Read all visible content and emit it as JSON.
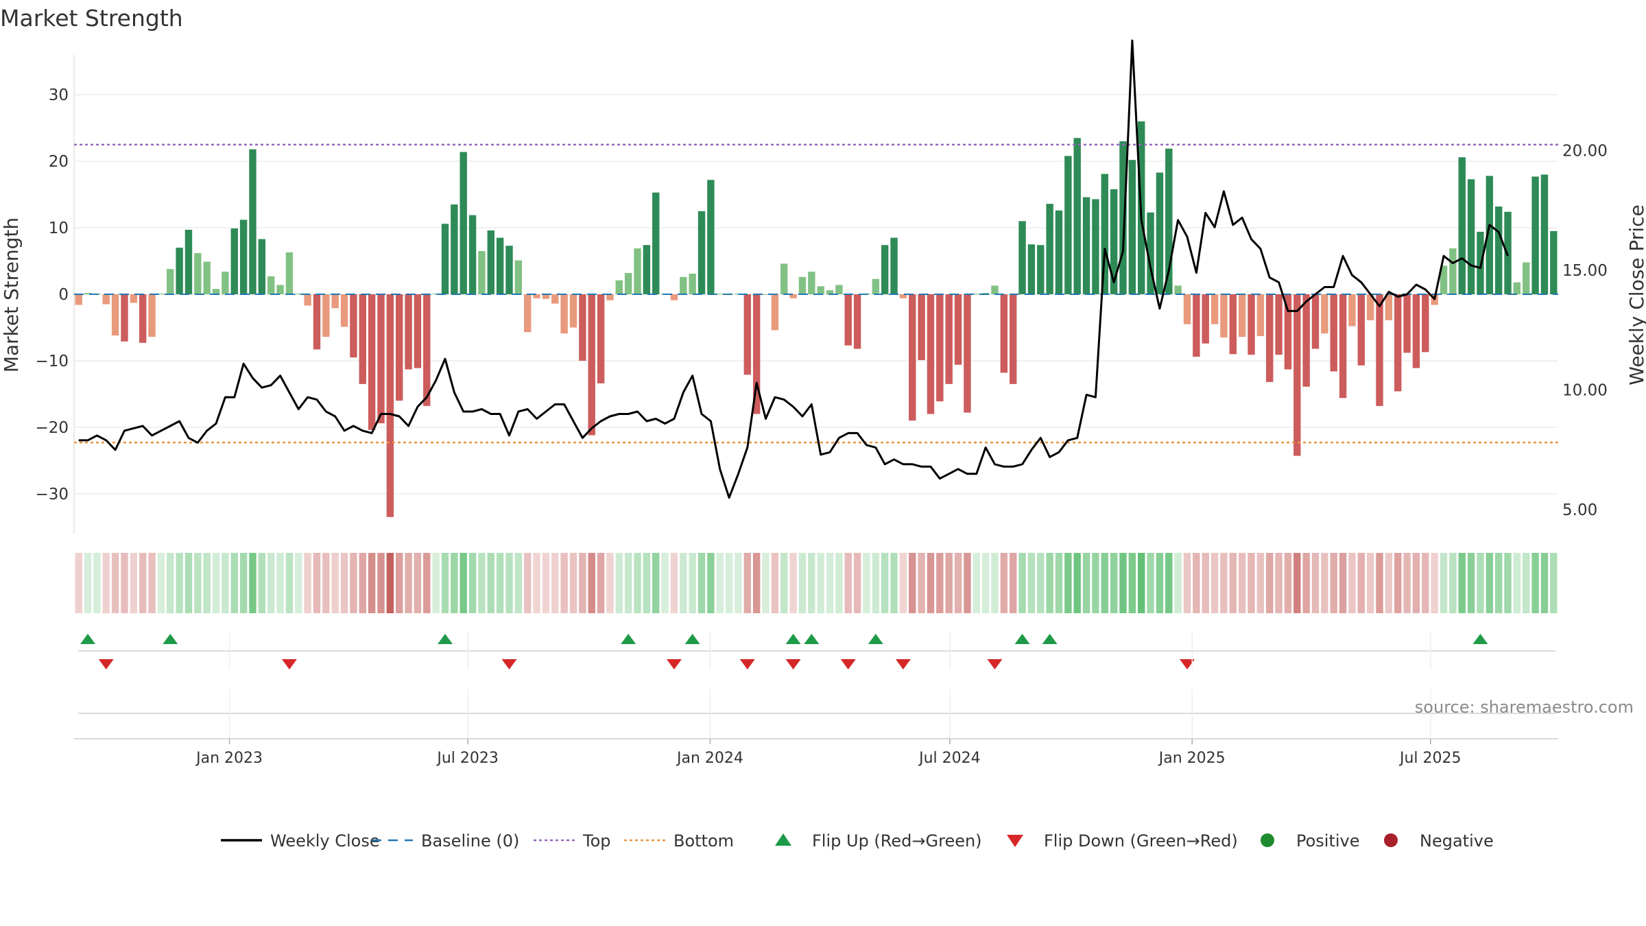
{
  "chart_data": {
    "type": "bar",
    "title": "Market Strength",
    "ylabel": "Market Strength",
    "y2label": "Weekly Close Price",
    "ylim": [
      -36,
      36
    ],
    "y2lim": [
      4,
      24
    ],
    "yticks": [
      30,
      20,
      10,
      0,
      -10,
      -20,
      -30
    ],
    "y2ticks": [
      "20.00",
      "15.00",
      "10.00",
      "5.00"
    ],
    "y2tick_values": [
      20,
      15,
      10,
      5
    ],
    "top_level": 22.5,
    "bottom_level": -22.3,
    "x_start": "2022-09-05",
    "x_end": "2025-10-06",
    "x_ticks": [
      {
        "label": "Jan 2023",
        "date": "2023-01-01"
      },
      {
        "label": "Jul 2023",
        "date": "2023-07-01"
      },
      {
        "label": "Jan 2024",
        "date": "2024-01-01"
      },
      {
        "label": "Jul 2024",
        "date": "2024-07-01"
      },
      {
        "label": "Jan 2025",
        "date": "2025-01-01"
      },
      {
        "label": "Jul 2025",
        "date": "2025-07-01"
      }
    ],
    "strength": [
      -1.6,
      0.2,
      0.1,
      -1.5,
      -6.2,
      -7.1,
      -1.3,
      -7.3,
      -6.4,
      0.1,
      3.8,
      7.0,
      9.7,
      6.2,
      4.9,
      0.8,
      3.4,
      9.9,
      11.2,
      21.8,
      8.3,
      2.7,
      1.4,
      6.3,
      0.1,
      -1.7,
      -8.3,
      -6.4,
      -2.1,
      -4.9,
      -9.5,
      -13.5,
      -20.4,
      -19.4,
      -33.5,
      -16.0,
      -11.3,
      -11.1,
      -16.8,
      0.1,
      10.6,
      13.5,
      21.4,
      11.9,
      6.5,
      9.6,
      8.5,
      7.3,
      5.1,
      -5.7,
      -0.6,
      -0.7,
      -1.4,
      -5.9,
      -5.0,
      -10.0,
      -21.2,
      -13.4,
      -0.9,
      2.1,
      3.2,
      6.9,
      7.4,
      15.3,
      0.1,
      -0.9,
      2.6,
      3.1,
      12.5,
      17.2,
      0.1,
      0.1,
      0.1,
      -12.1,
      -18.0,
      0.0,
      -5.4,
      4.6,
      -0.6,
      2.6,
      3.4,
      1.2,
      0.6,
      1.4,
      -7.7,
      -8.2,
      0.1,
      2.3,
      7.4,
      8.5,
      -0.6,
      -19.0,
      -9.9,
      -18.0,
      -16.1,
      -13.5,
      -10.6,
      -17.8,
      0.1,
      0.2,
      1.3,
      -11.8,
      -13.5,
      11.0,
      7.5,
      7.4,
      13.6,
      12.6,
      20.8,
      23.5,
      14.6,
      14.3,
      18.1,
      15.8,
      23.0,
      20.2,
      26.0,
      12.3,
      18.3,
      21.9,
      1.3,
      -4.5,
      -9.4,
      -7.4,
      -4.5,
      -6.5,
      -9.0,
      -6.4,
      -9.1,
      -6.3,
      -13.2,
      -9.1,
      -11.3,
      -24.3,
      -13.9,
      -8.2,
      -5.9,
      -11.6,
      -15.6,
      -4.8,
      -10.7,
      -3.9,
      -16.8,
      -3.9,
      -14.6,
      -8.8,
      -11.1,
      -8.7,
      -1.6,
      4.3,
      6.9,
      20.6,
      17.3,
      9.4,
      17.8,
      13.2,
      12.4,
      1.8,
      4.8,
      17.7,
      18.0,
      9.5
    ],
    "close": [
      7.9,
      7.9,
      8.1,
      7.9,
      7.5,
      8.3,
      8.4,
      8.5,
      8.1,
      8.3,
      8.5,
      8.7,
      8.0,
      7.8,
      8.3,
      8.6,
      9.7,
      9.7,
      11.1,
      10.5,
      10.1,
      10.2,
      10.6,
      9.9,
      9.2,
      9.7,
      9.6,
      9.1,
      8.9,
      8.3,
      8.5,
      8.3,
      8.2,
      9.0,
      9.0,
      8.9,
      8.5,
      9.3,
      9.7,
      10.4,
      11.3,
      9.9,
      9.1,
      9.1,
      9.2,
      9.0,
      9.0,
      8.1,
      9.1,
      9.2,
      8.8,
      9.1,
      9.4,
      9.4,
      8.7,
      8.0,
      8.4,
      8.7,
      8.9,
      9.0,
      9.0,
      9.1,
      8.7,
      8.8,
      8.6,
      8.8,
      9.9,
      10.6,
      9.0,
      8.7,
      6.7,
      5.5,
      6.5,
      7.6,
      10.3,
      8.8,
      9.7,
      9.6,
      9.3,
      8.9,
      9.4,
      7.3,
      7.4,
      8.0,
      8.2,
      8.2,
      7.7,
      7.6,
      6.9,
      7.1,
      6.9,
      6.9,
      6.8,
      6.8,
      6.3,
      6.5,
      6.7,
      6.5,
      6.5,
      7.6,
      6.9,
      6.8,
      6.8,
      6.9,
      7.5,
      8.0,
      7.2,
      7.4,
      7.9,
      8.0,
      9.8,
      9.7,
      15.9,
      14.5,
      15.8,
      24.6,
      17.1,
      15.1,
      13.4,
      15.0,
      17.1,
      16.4,
      14.9,
      17.4,
      16.8,
      18.3,
      16.9,
      17.2,
      16.3,
      15.9,
      14.7,
      14.5,
      13.3,
      13.3,
      13.7,
      14.0,
      14.3,
      14.3,
      15.6,
      14.8,
      14.5,
      14.0,
      13.5,
      14.1,
      13.9,
      14.0,
      14.4,
      14.2,
      13.8,
      15.6,
      15.3,
      15.5,
      15.2,
      15.1,
      16.9,
      16.6,
      15.6
    ],
    "flip_up_index": [
      1,
      10,
      40,
      60,
      67,
      78,
      80,
      87,
      103,
      106,
      153
    ],
    "flip_down_index": [
      3,
      23,
      47,
      65,
      73,
      78,
      84,
      90,
      100,
      121
    ],
    "legend": [
      {
        "label": "Weekly Close",
        "kind": "line",
        "color": "#000000"
      },
      {
        "label": "Baseline (0)",
        "kind": "dash",
        "color": "#1f77b4"
      },
      {
        "label": "Top",
        "kind": "dot",
        "color": "#9467bd"
      },
      {
        "label": "Bottom",
        "kind": "dot",
        "color": "#e89540"
      },
      {
        "label": "Flip Up (Red→Green)",
        "kind": "triangle-up",
        "color": "#1e9a48"
      },
      {
        "label": "Flip Down (Green→Red)",
        "kind": "triangle-down",
        "color": "#d62728"
      },
      {
        "label": "Positive",
        "kind": "circle",
        "color": "#1f8a2e"
      },
      {
        "label": "Negative",
        "kind": "circle",
        "color": "#a8202a"
      }
    ],
    "legend_position": "bottom",
    "grid": true
  },
  "source_text": "source: sharemaestro.com",
  "colors": {
    "pos_dark": "#2e8b57",
    "pos_light": "#82c184",
    "neg_dark": "#cd5c5c",
    "neg_light": "#e99a7c",
    "close_line": "#000000",
    "baseline": "#1f77b4",
    "top_line": "#9467bd",
    "bottom_line": "#e89540"
  }
}
